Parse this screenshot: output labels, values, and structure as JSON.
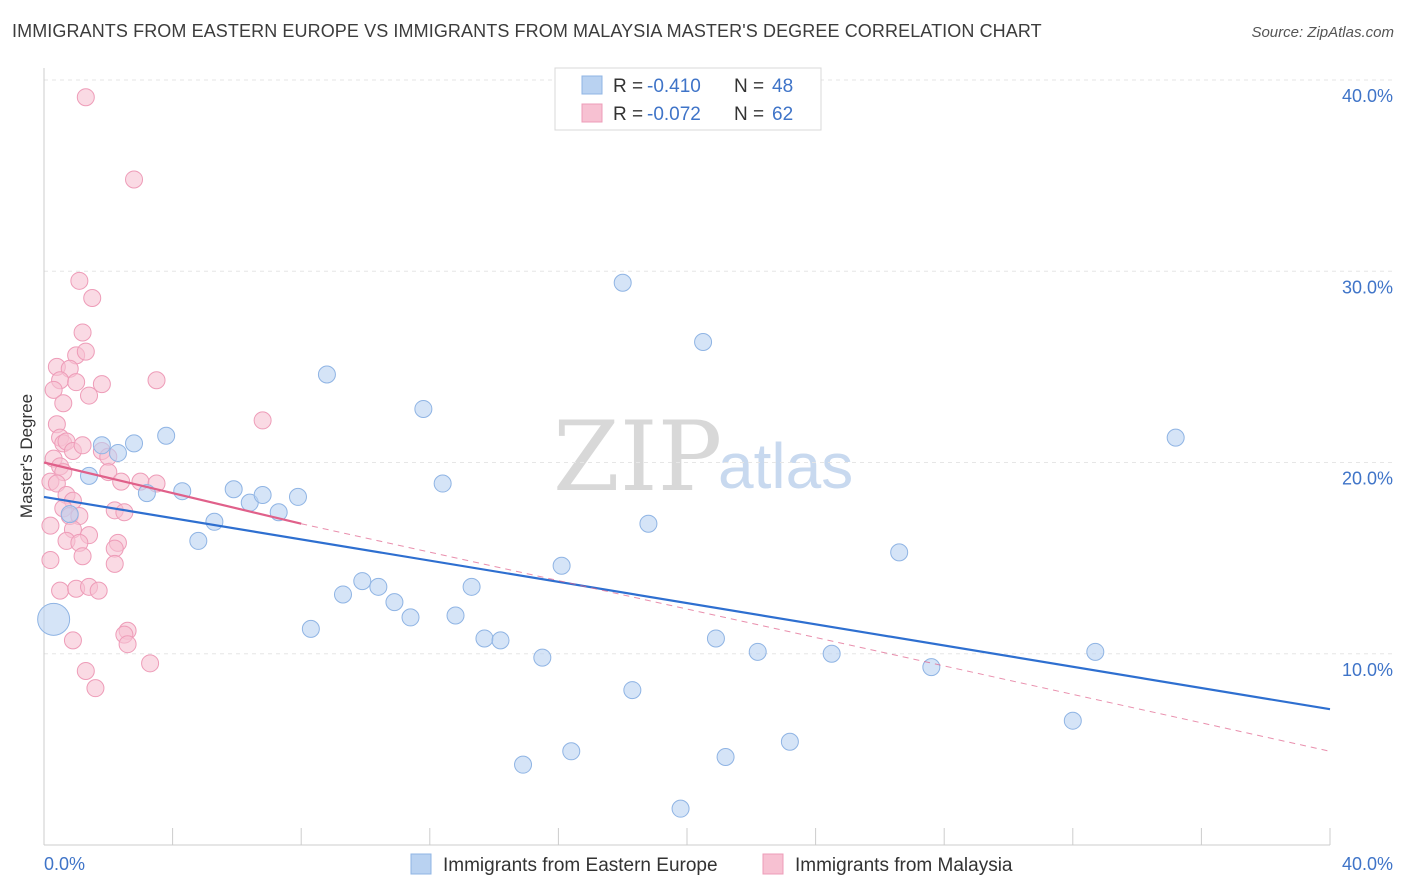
{
  "header": {
    "title": "IMMIGRANTS FROM EASTERN EUROPE VS IMMIGRANTS FROM MALAYSIA MASTER'S DEGREE CORRELATION CHART",
    "source": "Source: ZipAtlas.com"
  },
  "watermark": {
    "zip": "ZIP",
    "atlas": "atlas"
  },
  "legend": {
    "series": [
      {
        "r_label": "R =",
        "r_value": "-0.410",
        "n_label": "N =",
        "n_value": "48"
      },
      {
        "r_label": "R =",
        "r_value": "-0.072",
        "n_label": "N =",
        "n_value": "62"
      }
    ]
  },
  "chart_data": {
    "type": "scatter",
    "title": "IMMIGRANTS FROM EASTERN EUROPE VS IMMIGRANTS FROM MALAYSIA MASTER'S DEGREE CORRELATION CHART",
    "xlabel": "",
    "ylabel": "Master's Degree",
    "xlim": [
      0,
      40
    ],
    "ylim": [
      0,
      40
    ],
    "x_tick_labels": [
      "0.0%",
      "40.0%"
    ],
    "y_ticks": [
      10,
      20,
      30,
      40
    ],
    "y_tick_labels": [
      "10.0%",
      "20.0%",
      "30.0%",
      "40.0%"
    ],
    "colors": {
      "blue_fill": "#b9d2f1",
      "blue_stroke": "#8fb4e4",
      "blue_line": "#2e6fd0",
      "pink_fill": "#f7c1d2",
      "pink_stroke": "#ee9cb8",
      "pink_line": "#e0608a"
    },
    "series": [
      {
        "name": "Immigrants from Eastern Europe",
        "color": "#b9d2f1",
        "points": [
          [
            0.3,
            11.8
          ],
          [
            1.4,
            19.3
          ],
          [
            0.8,
            17.3
          ],
          [
            1.8,
            20.9
          ],
          [
            2.3,
            20.5
          ],
          [
            2.8,
            21.0
          ],
          [
            3.2,
            18.4
          ],
          [
            3.8,
            21.4
          ],
          [
            4.3,
            18.5
          ],
          [
            4.8,
            15.9
          ],
          [
            5.3,
            16.9
          ],
          [
            5.9,
            18.6
          ],
          [
            6.4,
            17.9
          ],
          [
            6.8,
            18.3
          ],
          [
            7.3,
            17.4
          ],
          [
            7.9,
            18.2
          ],
          [
            8.3,
            11.3
          ],
          [
            8.8,
            24.6
          ],
          [
            9.3,
            13.1
          ],
          [
            9.9,
            13.8
          ],
          [
            10.4,
            13.5
          ],
          [
            10.9,
            12.7
          ],
          [
            11.4,
            11.9
          ],
          [
            11.8,
            22.8
          ],
          [
            12.4,
            18.9
          ],
          [
            12.8,
            12.0
          ],
          [
            13.3,
            13.5
          ],
          [
            13.7,
            10.8
          ],
          [
            14.2,
            10.7
          ],
          [
            14.9,
            4.2
          ],
          [
            15.5,
            9.8
          ],
          [
            16.1,
            14.6
          ],
          [
            16.4,
            4.9
          ],
          [
            18.0,
            29.4
          ],
          [
            18.3,
            8.1
          ],
          [
            18.8,
            16.8
          ],
          [
            19.8,
            1.9
          ],
          [
            20.5,
            26.3
          ],
          [
            20.9,
            10.8
          ],
          [
            21.2,
            4.6
          ],
          [
            22.2,
            10.1
          ],
          [
            23.2,
            5.4
          ],
          [
            24.5,
            10.0
          ],
          [
            26.6,
            15.3
          ],
          [
            27.6,
            9.3
          ],
          [
            32.0,
            6.5
          ],
          [
            32.7,
            10.1
          ],
          [
            35.2,
            21.3
          ]
        ]
      },
      {
        "name": "Immigrants from Malaysia",
        "color": "#f7c1d2",
        "points": [
          [
            1.3,
            39.1
          ],
          [
            2.8,
            34.8
          ],
          [
            1.1,
            29.5
          ],
          [
            1.5,
            28.6
          ],
          [
            1.2,
            26.8
          ],
          [
            1.0,
            25.6
          ],
          [
            1.3,
            25.8
          ],
          [
            0.4,
            25.0
          ],
          [
            0.8,
            24.9
          ],
          [
            0.5,
            24.3
          ],
          [
            1.0,
            24.2
          ],
          [
            1.8,
            24.1
          ],
          [
            0.3,
            23.8
          ],
          [
            1.4,
            23.5
          ],
          [
            0.6,
            23.1
          ],
          [
            3.5,
            24.3
          ],
          [
            6.8,
            22.2
          ],
          [
            0.4,
            22.0
          ],
          [
            0.5,
            21.3
          ],
          [
            0.6,
            21.0
          ],
          [
            0.7,
            21.1
          ],
          [
            0.9,
            20.6
          ],
          [
            1.2,
            20.9
          ],
          [
            1.8,
            20.6
          ],
          [
            2.0,
            20.3
          ],
          [
            0.3,
            20.2
          ],
          [
            0.5,
            19.8
          ],
          [
            0.6,
            19.5
          ],
          [
            0.2,
            19.0
          ],
          [
            0.4,
            18.9
          ],
          [
            2.0,
            19.5
          ],
          [
            2.4,
            19.0
          ],
          [
            3.0,
            19.0
          ],
          [
            3.5,
            18.9
          ],
          [
            0.7,
            18.3
          ],
          [
            0.9,
            18.0
          ],
          [
            0.6,
            17.6
          ],
          [
            0.8,
            17.2
          ],
          [
            1.1,
            17.2
          ],
          [
            2.2,
            17.5
          ],
          [
            2.5,
            17.4
          ],
          [
            0.2,
            16.7
          ],
          [
            0.9,
            16.5
          ],
          [
            1.4,
            16.2
          ],
          [
            0.7,
            15.9
          ],
          [
            1.1,
            15.8
          ],
          [
            2.3,
            15.8
          ],
          [
            2.2,
            15.5
          ],
          [
            0.2,
            14.9
          ],
          [
            1.2,
            15.1
          ],
          [
            2.2,
            14.7
          ],
          [
            0.5,
            13.3
          ],
          [
            1.0,
            13.4
          ],
          [
            1.4,
            13.5
          ],
          [
            1.7,
            13.3
          ],
          [
            2.6,
            11.2
          ],
          [
            2.5,
            11.0
          ],
          [
            2.6,
            10.5
          ],
          [
            0.9,
            10.7
          ],
          [
            3.3,
            9.5
          ],
          [
            1.3,
            9.1
          ],
          [
            1.6,
            8.2
          ]
        ]
      }
    ],
    "trend_lines": [
      {
        "series": "Immigrants from Eastern Europe",
        "x": [
          0,
          40
        ],
        "y": [
          18.2,
          7.1
        ],
        "style": "solid"
      },
      {
        "series": "Immigrants from Malaysia",
        "x": [
          0,
          8
        ],
        "y": [
          20.0,
          16.8
        ],
        "style": "solid"
      },
      {
        "series": "Immigrants from Malaysia",
        "x": [
          8,
          40
        ],
        "y": [
          16.8,
          4.9
        ],
        "style": "dashed"
      }
    ]
  }
}
